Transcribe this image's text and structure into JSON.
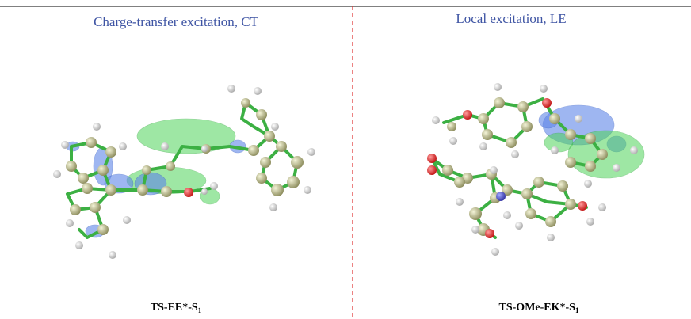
{
  "panels": [
    {
      "title": "Charge-transfer excitation, CT",
      "label": "TS-EE*-S",
      "label_sub": "1"
    },
    {
      "title": "Local excitation, LE",
      "label": "TS-OMe-EK*-S",
      "label_sub": "1"
    }
  ]
}
